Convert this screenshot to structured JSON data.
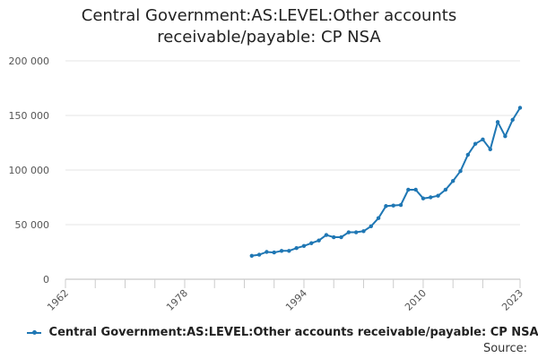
{
  "chart_data": {
    "type": "line",
    "title_lines": [
      "Central Government:AS:LEVEL:Other accounts",
      "receivable/payable: CP NSA"
    ],
    "xlabel": "",
    "ylabel": "",
    "xlim": [
      1962,
      2023
    ],
    "ylim": [
      0,
      200000
    ],
    "x_ticks": [
      1962,
      1978,
      1994,
      2010,
      2023
    ],
    "x_minor_ticks": [
      1962,
      1966,
      1970,
      1974,
      1978,
      1982,
      1986,
      1990,
      1994,
      1998,
      2002,
      2006,
      2010,
      2014,
      2018,
      2023
    ],
    "y_ticks": [
      {
        "value": 0,
        "label": "0"
      },
      {
        "value": 50000,
        "label": "50 000"
      },
      {
        "value": 100000,
        "label": "100 000"
      },
      {
        "value": 150000,
        "label": "150 000"
      },
      {
        "value": 200000,
        "label": "200 000"
      }
    ],
    "grid": "horizontal",
    "legend_position": "bottom",
    "color": "#1f77b4",
    "series": [
      {
        "name": "Central Government:AS:LEVEL:Other accounts receivable/payable: CP NSA",
        "x": [
          1987,
          1988,
          1989,
          1990,
          1991,
          1992,
          1993,
          1994,
          1995,
          1996,
          1997,
          1998,
          1999,
          2000,
          2001,
          2002,
          2003,
          2004,
          2005,
          2006,
          2007,
          2008,
          2009,
          2010,
          2011,
          2012,
          2013,
          2014,
          2015,
          2016,
          2017,
          2018,
          2019,
          2020,
          2021,
          2022,
          2023
        ],
        "values": [
          21500,
          22500,
          25000,
          24500,
          26000,
          26000,
          28500,
          30500,
          33000,
          35500,
          40500,
          38500,
          38500,
          43000,
          43000,
          44000,
          48500,
          56000,
          67000,
          67500,
          68000,
          82000,
          82000,
          74000,
          75000,
          76500,
          82000,
          90000,
          99000,
          114000,
          124000,
          128000,
          119000,
          144000,
          131000,
          146000,
          157000
        ]
      }
    ]
  },
  "source_label": "Source:"
}
